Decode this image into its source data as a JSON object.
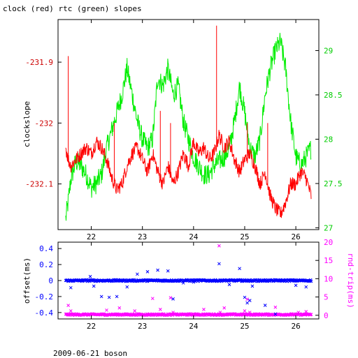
{
  "page": {
    "title": "clock (red) rtc (green) slopes",
    "footer": "2009-06-21 boson"
  },
  "chart_data": [
    {
      "type": "line",
      "title": "clock (red) rtc (green) slopes",
      "xlim": [
        21.35,
        26.45
      ],
      "x_ticks": [
        22,
        23,
        24,
        25,
        26
      ],
      "x_tick_labels": [
        "22",
        "23",
        "24",
        "25",
        "26"
      ],
      "left_axis": {
        "label": "clockslope",
        "ylim": [
          -232.175,
          -231.83
        ],
        "ticks": [
          -231.9,
          -232,
          -232.1
        ],
        "tick_labels": [
          "-231.9",
          "-232",
          "-232.1"
        ],
        "color": "#cc0000"
      },
      "right_axis": {
        "label": "",
        "ylim": [
          26.98,
          29.35
        ],
        "ticks": [
          27,
          27.5,
          28,
          28.5,
          29
        ],
        "tick_labels": [
          "27",
          "27.5",
          "28",
          "28.5",
          "29"
        ],
        "color": "#00cc00"
      },
      "series": [
        {
          "name": "clock",
          "axis": "left",
          "color": "#ff0000",
          "x": [
            21.5,
            21.55,
            21.6,
            21.7,
            21.8,
            21.9,
            22.0,
            22.1,
            22.2,
            22.3,
            22.4,
            22.5,
            22.6,
            22.7,
            22.8,
            22.9,
            23.0,
            23.1,
            23.2,
            23.3,
            23.4,
            23.5,
            23.6,
            23.7,
            23.8,
            23.9,
            24.0,
            24.1,
            24.2,
            24.3,
            24.4,
            24.5,
            24.6,
            24.7,
            24.8,
            24.9,
            25.0,
            25.1,
            25.2,
            25.3,
            25.4,
            25.5,
            25.6,
            25.7,
            25.8,
            25.9,
            26.0,
            26.1,
            26.2,
            26.3
          ],
          "y": [
            -232.04,
            -232.06,
            -232.07,
            -232.06,
            -232.05,
            -232.04,
            -232.05,
            -232.03,
            -232.04,
            -232.06,
            -232.09,
            -232.11,
            -232.1,
            -232.07,
            -232.05,
            -232.04,
            -232.06,
            -232.08,
            -232.05,
            -232.08,
            -232.1,
            -232.07,
            -232.1,
            -232.08,
            -232.05,
            -232.07,
            -232.03,
            -232.05,
            -232.04,
            -232.06,
            -232.05,
            -232.02,
            -232.04,
            -232.03,
            -232.06,
            -232.08,
            -232.06,
            -232.05,
            -232.07,
            -232.1,
            -232.08,
            -232.12,
            -232.14,
            -232.15,
            -232.13,
            -232.1,
            -232.1,
            -232.08,
            -232.09,
            -232.12
          ],
          "spikes": [
            {
              "x": 21.55,
              "y": -231.89
            },
            {
              "x": 22.45,
              "y": -232.0
            },
            {
              "x": 23.35,
              "y": -231.98
            },
            {
              "x": 23.55,
              "y": -232.0
            },
            {
              "x": 24.45,
              "y": -231.84
            },
            {
              "x": 25.05,
              "y": -232.0
            },
            {
              "x": 25.45,
              "y": -232.0
            }
          ]
        },
        {
          "name": "rtc",
          "axis": "right",
          "color": "#00ee00",
          "x": [
            21.5,
            21.55,
            21.6,
            21.7,
            21.8,
            21.9,
            22.0,
            22.1,
            22.2,
            22.3,
            22.4,
            22.5,
            22.6,
            22.7,
            22.8,
            22.9,
            23.0,
            23.1,
            23.2,
            23.3,
            23.4,
            23.5,
            23.6,
            23.7,
            23.8,
            23.9,
            24.0,
            24.1,
            24.2,
            24.3,
            24.4,
            24.5,
            24.6,
            24.7,
            24.8,
            24.9,
            25.0,
            25.1,
            25.2,
            25.3,
            25.4,
            25.5,
            25.6,
            25.7,
            25.8,
            25.9,
            26.0,
            26.1,
            26.2,
            26.3
          ],
          "y": [
            27.1,
            27.3,
            27.55,
            27.75,
            27.7,
            27.6,
            27.45,
            27.5,
            27.6,
            27.9,
            28.1,
            28.3,
            28.5,
            28.8,
            28.5,
            28.2,
            28.0,
            27.9,
            28.0,
            28.7,
            28.6,
            28.8,
            28.5,
            28.6,
            28.2,
            28.0,
            27.8,
            27.7,
            27.6,
            27.6,
            27.7,
            27.75,
            27.8,
            27.9,
            28.2,
            28.6,
            28.3,
            27.9,
            27.8,
            28.0,
            28.5,
            28.8,
            29.0,
            29.1,
            28.8,
            28.2,
            27.8,
            27.7,
            27.8,
            27.9
          ],
          "spikes": []
        }
      ]
    },
    {
      "type": "scatter",
      "xlim": [
        21.35,
        26.45
      ],
      "x_ticks": [
        22,
        23,
        24,
        25,
        26
      ],
      "x_tick_labels": [
        "22",
        "23",
        "24",
        "25",
        "26"
      ],
      "left_axis": {
        "label": "offset(ms)",
        "ylim": [
          -0.48,
          0.48
        ],
        "ticks": [
          0.4,
          0.2,
          0,
          -0.2,
          -0.4
        ],
        "tick_labels": [
          "0.4",
          "0.2",
          "0",
          "-0.2",
          "-0.4"
        ],
        "color": "#0000ff"
      },
      "right_axis": {
        "label": "rnd-trip(ms)",
        "ylim": [
          -1,
          20
        ],
        "ticks": [
          0,
          5,
          10,
          15,
          20
        ],
        "tick_labels": [
          "0",
          "5",
          "10",
          "15",
          "20"
        ],
        "color": "#ff00ff"
      },
      "series": [
        {
          "name": "offset",
          "axis": "left",
          "color": "#0000ff",
          "baseline": 0.0,
          "outliers_x": [
            21.6,
            21.98,
            22.05,
            22.2,
            22.35,
            22.5,
            22.7,
            22.9,
            23.1,
            23.3,
            23.5,
            23.6,
            23.8,
            24.0,
            24.2,
            24.5,
            24.7,
            24.9,
            25.0,
            25.05,
            25.1,
            25.15,
            25.4,
            25.6,
            26.0,
            26.2
          ],
          "outliers_y": [
            -0.09,
            0.05,
            -0.07,
            -0.2,
            -0.21,
            -0.2,
            -0.08,
            0.08,
            0.11,
            0.13,
            0.12,
            -0.23,
            -0.03,
            -0.02,
            0.0,
            0.21,
            -0.05,
            0.15,
            -0.21,
            -0.28,
            -0.25,
            -0.07,
            -0.31,
            -0.42,
            -0.06,
            -0.08
          ]
        },
        {
          "name": "rnd-trip",
          "axis": "right",
          "color": "#ff00ff",
          "baseline": 0.2,
          "outliers_x": [
            21.55,
            21.6,
            22.3,
            22.55,
            22.85,
            23.2,
            23.35,
            23.55,
            23.6,
            24.2,
            24.5,
            24.52,
            24.6,
            25.0,
            25.05,
            25.1,
            25.6,
            26.05,
            26.2
          ],
          "outliers_y": [
            2.7,
            1.2,
            1.4,
            2.0,
            1.2,
            4.6,
            1.6,
            4.8,
            0.8,
            1.6,
            19.0,
            0.8,
            2.0,
            1.2,
            4.4,
            0.8,
            2.2,
            0.8,
            1.0
          ]
        }
      ]
    }
  ]
}
